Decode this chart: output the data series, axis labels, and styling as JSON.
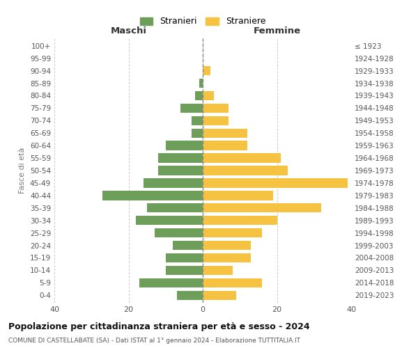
{
  "age_groups": [
    "0-4",
    "5-9",
    "10-14",
    "15-19",
    "20-24",
    "25-29",
    "30-34",
    "35-39",
    "40-44",
    "45-49",
    "50-54",
    "55-59",
    "60-64",
    "65-69",
    "70-74",
    "75-79",
    "80-84",
    "85-89",
    "90-94",
    "95-99",
    "100+"
  ],
  "birth_years": [
    "2019-2023",
    "2014-2018",
    "2009-2013",
    "2004-2008",
    "1999-2003",
    "1994-1998",
    "1989-1993",
    "1984-1988",
    "1979-1983",
    "1974-1978",
    "1969-1973",
    "1964-1968",
    "1959-1963",
    "1954-1958",
    "1949-1953",
    "1944-1948",
    "1939-1943",
    "1934-1938",
    "1929-1933",
    "1924-1928",
    "≤ 1923"
  ],
  "maschi": [
    7,
    17,
    10,
    10,
    8,
    13,
    18,
    15,
    27,
    16,
    12,
    12,
    10,
    3,
    3,
    6,
    2,
    1,
    0,
    0,
    0
  ],
  "femmine": [
    9,
    16,
    8,
    13,
    13,
    16,
    20,
    32,
    19,
    39,
    23,
    21,
    12,
    12,
    7,
    7,
    3,
    0,
    2,
    0,
    0
  ],
  "male_color": "#6d9e5a",
  "female_color": "#f5c242",
  "title": "Popolazione per cittadinanza straniera per età e sesso - 2024",
  "subtitle": "COMUNE DI CASTELLABATE (SA) - Dati ISTAT al 1° gennaio 2024 - Elaborazione TUTTITALIA.IT",
  "xlabel_left": "Maschi",
  "xlabel_right": "Femmine",
  "ylabel_left": "Fasce di età",
  "legend_male": "Stranieri",
  "legend_female": "Straniere",
  "xlim": 40,
  "background_color": "#ffffff",
  "grid_color": "#cccccc"
}
